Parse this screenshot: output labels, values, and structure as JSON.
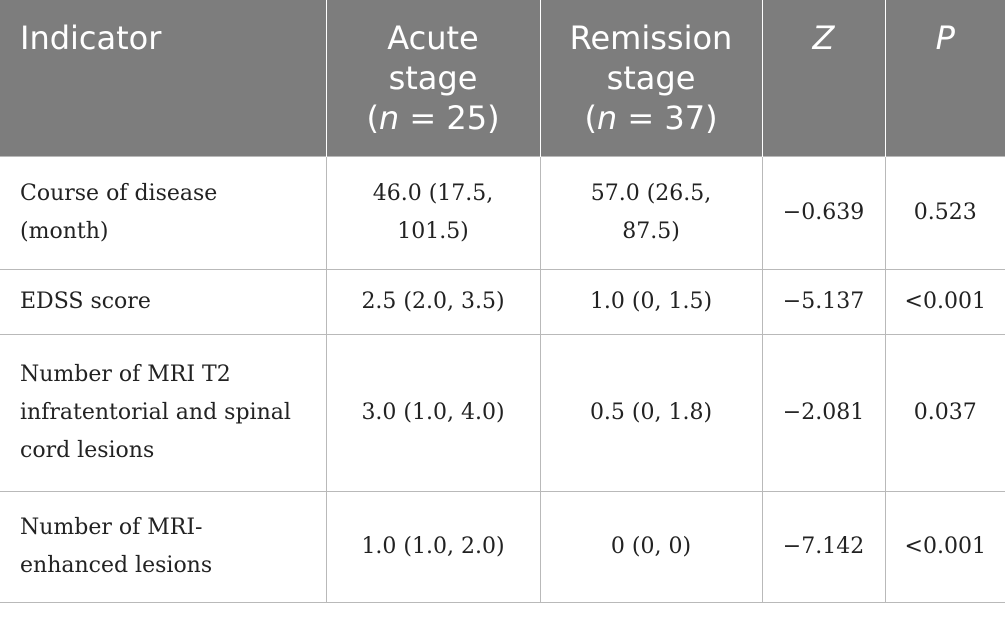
{
  "headers": [
    {
      "text": "Indicator"
    },
    {
      "line1": "Acute",
      "line2": "stage",
      "n_var": "n",
      "n_rest": " = 25)"
    },
    {
      "line1": "Remission",
      "line2": "stage",
      "n_var": "n",
      "n_rest": " = 37)"
    },
    {
      "text": "Z"
    },
    {
      "text": "P"
    }
  ],
  "rows": [
    {
      "indicator": "Course of disease (month)",
      "acute": "46.0 (17.5, 101.5)",
      "remission": "57.0 (26.5, 87.5)",
      "z": "−0.639",
      "p": "0.523"
    },
    {
      "indicator": "EDSS score",
      "acute": "2.5 (2.0, 3.5)",
      "remission": "1.0 (0, 1.5)",
      "z": "−5.137",
      "p": "<0.001"
    },
    {
      "indicator": "Number of MRI T2 infratentorial and spinal cord lesions",
      "acute": "3.0 (1.0, 4.0)",
      "remission": "0.5 (0, 1.8)",
      "z": "−2.081",
      "p": "0.037"
    },
    {
      "indicator": "Number of MRI-enhanced lesions",
      "acute": "1.0 (1.0, 2.0)",
      "remission": "0 (0, 0)",
      "z": "−7.142",
      "p": "<0.001"
    }
  ]
}
